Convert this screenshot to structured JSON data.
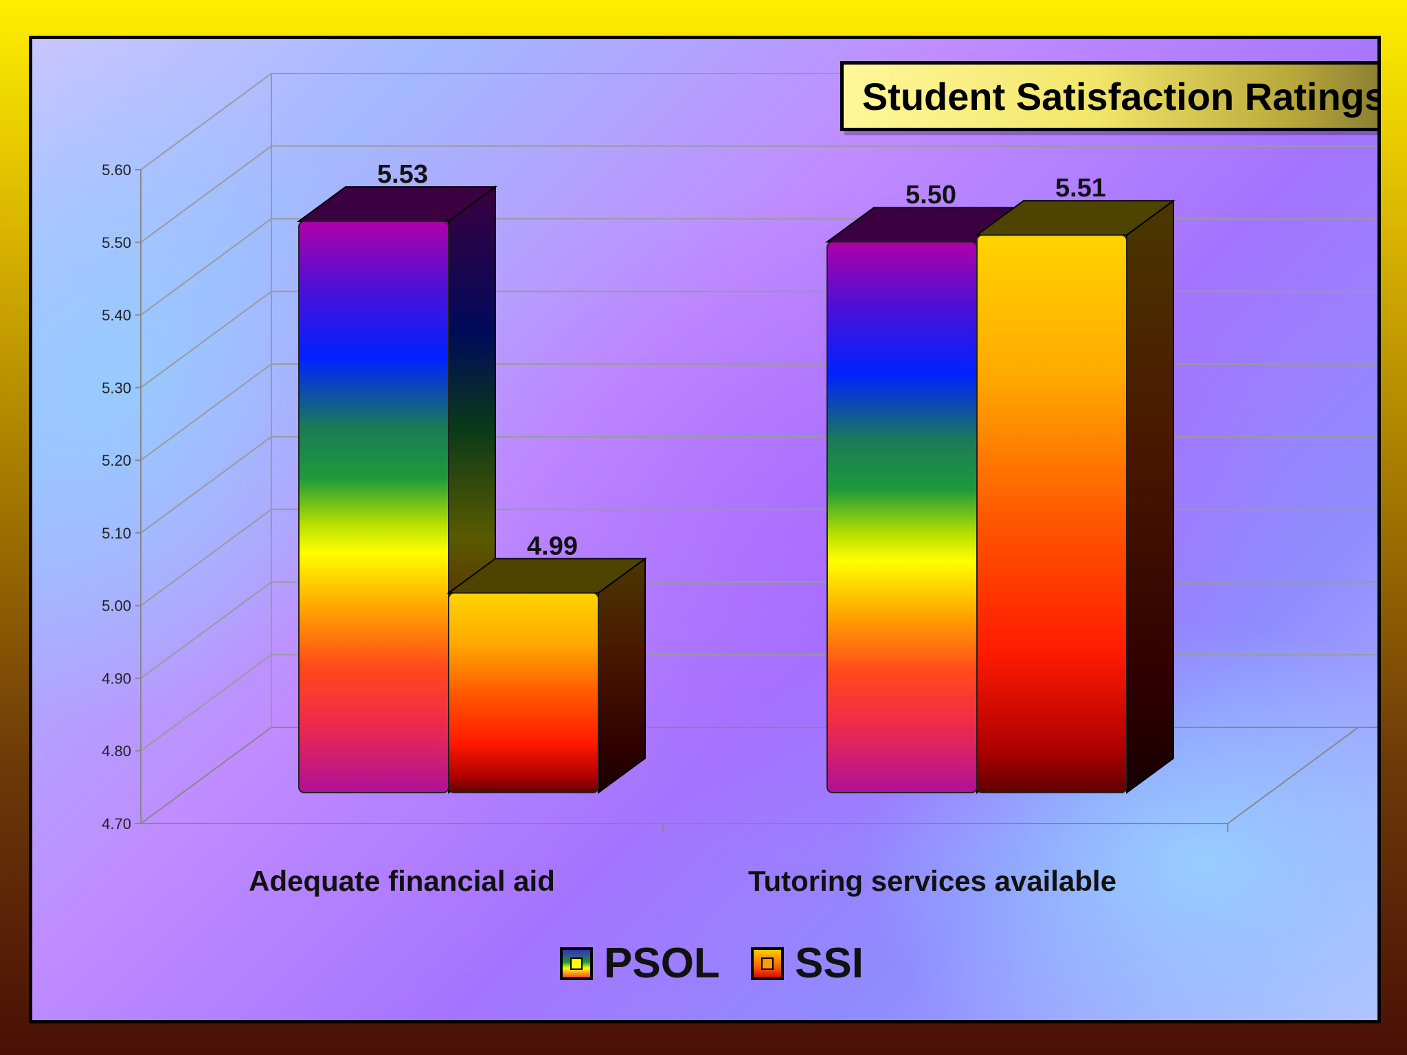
{
  "chart_data": {
    "type": "bar",
    "title": "Student Satisfaction Ratings",
    "categories": [
      "Adequate financial aid",
      "Tutoring services available"
    ],
    "series": [
      {
        "name": "PSOL",
        "values": [
          5.53,
          5.5
        ],
        "labels": [
          "5.53",
          "5.50"
        ]
      },
      {
        "name": "SSI",
        "values": [
          4.99,
          5.51
        ],
        "labels": [
          "4.99",
          "5.51"
        ]
      }
    ],
    "ylim": [
      4.7,
      5.6
    ],
    "yticks": [
      "4.70",
      "4.80",
      "4.90",
      "5.00",
      "5.10",
      "5.20",
      "5.30",
      "5.40",
      "5.50",
      "5.60"
    ],
    "xlabel": "",
    "ylabel": "",
    "grid": true,
    "style": "3d-column",
    "legend_position": "bottom"
  }
}
